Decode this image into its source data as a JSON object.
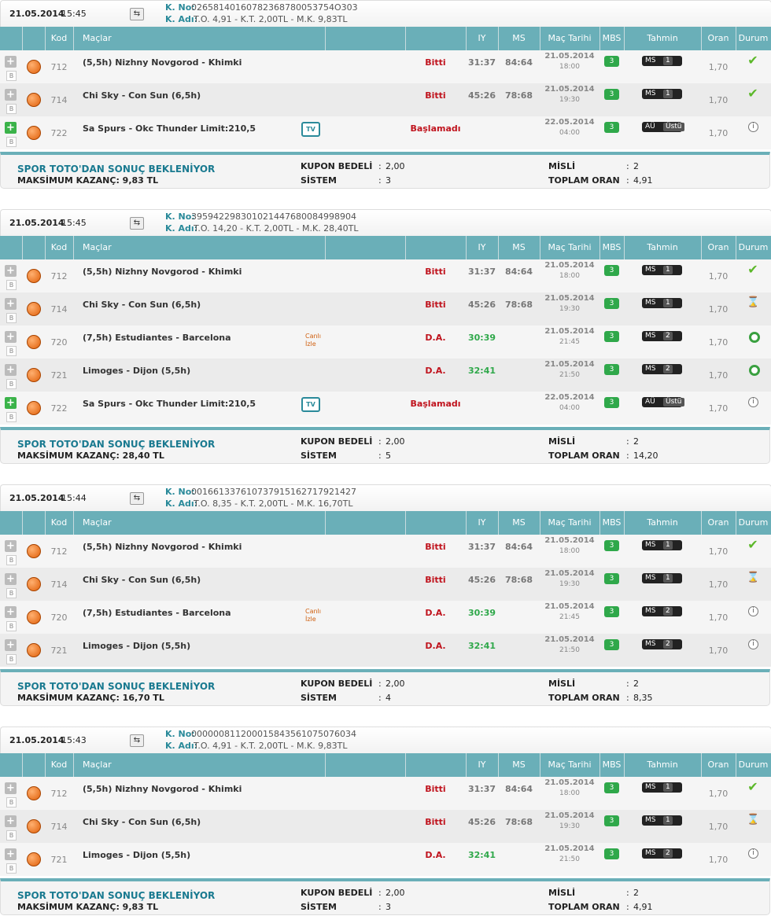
{
  "columns": [
    "Kod",
    "Maçlar",
    "IY",
    "MS",
    "Maç Tarihi",
    "MBS",
    "Tahmin",
    "Oran",
    "Durum"
  ],
  "labels": {
    "k_no": "K. No:",
    "k_adi": "K. Adı:",
    "b": "B",
    "tv": "TV",
    "waiting": "SPOR TOTO'DAN SONUÇ BEKLENİYOR",
    "stake": "KUPON BEDELİ",
    "system": "SİSTEM",
    "multiplier": "MİSLİ",
    "total_odds": "TOPLAM ORAN",
    "sep": ":"
  },
  "coupons": [
    {
      "date": "21.05.2014",
      "time": "15:45",
      "k_no": "02658140160782368780053754O303",
      "k_adi": "T.O. 4,91 - K.T. 2,00TL - M.K. 9,83TL",
      "rows": [
        {
          "code": "712",
          "match": "(5,5h) Nizhny Novgorod - Khimki",
          "status": "Bitti",
          "iy": "31:37",
          "ms": "84:64",
          "date": "21.05.2014",
          "time": "18:00",
          "mbs": "3",
          "bet_type": "MS",
          "bet": "1",
          "odds": "1,70"
        },
        {
          "code": "714",
          "match": "Chi Sky - Con Sun (6,5h)",
          "status": "Bitti",
          "iy": "45:26",
          "ms": "78:68",
          "date": "21.05.2014",
          "time": "19:30",
          "mbs": "3",
          "bet_type": "MS",
          "bet": "1",
          "odds": "1,70"
        },
        {
          "code": "722",
          "match": "Sa Spurs - Okc Thunder Limit:210,5",
          "status": "Başlamadı",
          "date": "22.05.2014",
          "time": "04:00",
          "mbs": "3",
          "bet_type": "AÜ",
          "bet": "Üstü",
          "odds": "1,70"
        }
      ],
      "max_win": "MAKSİMUM KAZANÇ: 9,83 TL",
      "stake": "2,00",
      "system": "3",
      "multiplier": "2",
      "total_odds": "4,91"
    },
    {
      "date": "21.05.2014",
      "time": "15:45",
      "k_no": "395942298301021447680084998904",
      "k_adi": "T.O. 14,20 - K.T. 2,00TL - M.K. 28,40TL",
      "rows": [
        {
          "code": "712",
          "match": "(5,5h) Nizhny Novgorod - Khimki",
          "status": "Bitti",
          "iy": "31:37",
          "ms": "84:64",
          "date": "21.05.2014",
          "time": "18:00",
          "mbs": "3",
          "bet_type": "MS",
          "bet": "1",
          "odds": "1,70"
        },
        {
          "code": "714",
          "match": "Chi Sky - Con Sun (6,5h)",
          "status": "Bitti",
          "iy": "45:26",
          "ms": "78:68",
          "date": "21.05.2014",
          "time": "19:30",
          "mbs": "3",
          "bet_type": "MS",
          "bet": "1",
          "odds": "1,70"
        },
        {
          "code": "720",
          "match": "(7,5h) Estudiantes - Barcelona",
          "live": [
            "Canlı",
            "İzle"
          ],
          "status": "D.A.",
          "iy": "30:39",
          "date": "21.05.2014",
          "time": "21:45",
          "mbs": "3",
          "bet_type": "MS",
          "bet": "2",
          "odds": "1,70"
        },
        {
          "code": "721",
          "match": "Limoges - Dijon (5,5h)",
          "status": "D.A.",
          "iy": "32:41",
          "date": "21.05.2014",
          "time": "21:50",
          "mbs": "3",
          "bet_type": "MS",
          "bet": "2",
          "odds": "1,70"
        },
        {
          "code": "722",
          "match": "Sa Spurs - Okc Thunder Limit:210,5",
          "status": "Başlamadı",
          "date": "22.05.2014",
          "time": "04:00",
          "mbs": "3",
          "bet_type": "AÜ",
          "bet": "Üstü",
          "odds": "1,70"
        }
      ],
      "max_win": "MAKSİMUM KAZANÇ: 28,40 TL",
      "stake": "2,00",
      "system": "5",
      "multiplier": "2",
      "total_odds": "14,20"
    },
    {
      "date": "21.05.2014",
      "time": "15:44",
      "k_no": "001661337610737915162717921427",
      "k_adi": "T.O. 8,35 - K.T. 2,00TL - M.K. 16,70TL",
      "rows": [
        {
          "code": "712",
          "match": "(5,5h) Nizhny Novgorod - Khimki",
          "status": "Bitti",
          "iy": "31:37",
          "ms": "84:64",
          "date": "21.05.2014",
          "time": "18:00",
          "mbs": "3",
          "bet_type": "MS",
          "bet": "1",
          "odds": "1,70"
        },
        {
          "code": "714",
          "match": "Chi Sky - Con Sun (6,5h)",
          "status": "Bitti",
          "iy": "45:26",
          "ms": "78:68",
          "date": "21.05.2014",
          "time": "19:30",
          "mbs": "3",
          "bet_type": "MS",
          "bet": "1",
          "odds": "1,70"
        },
        {
          "code": "720",
          "match": "(7,5h) Estudiantes - Barcelona",
          "live": [
            "Canlı",
            "İzle"
          ],
          "status": "D.A.",
          "iy": "30:39",
          "date": "21.05.2014",
          "time": "21:45",
          "mbs": "3",
          "bet_type": "MS",
          "bet": "2",
          "odds": "1,70"
        },
        {
          "code": "721",
          "match": "Limoges - Dijon (5,5h)",
          "status": "D.A.",
          "iy": "32:41",
          "date": "21.05.2014",
          "time": "21:50",
          "mbs": "3",
          "bet_type": "MS",
          "bet": "2",
          "odds": "1,70"
        }
      ],
      "max_win": "MAKSİMUM KAZANÇ: 16,70 TL",
      "stake": "2,00",
      "system": "4",
      "multiplier": "2",
      "total_odds": "8,35"
    },
    {
      "date": "21.05.2014",
      "time": "15:43",
      "k_no": "000000811200015843561075076034",
      "k_adi": "T.O. 4,91 - K.T. 2,00TL - M.K. 9,83TL",
      "rows": [
        {
          "code": "712",
          "match": "(5,5h) Nizhny Novgorod - Khimki",
          "status": "Bitti",
          "iy": "31:37",
          "ms": "84:64",
          "date": "21.05.2014",
          "time": "18:00",
          "mbs": "3",
          "bet_type": "MS",
          "bet": "1",
          "odds": "1,70"
        },
        {
          "code": "714",
          "match": "Chi Sky - Con Sun (6,5h)",
          "status": "Bitti",
          "iy": "45:26",
          "ms": "78:68",
          "date": "21.05.2014",
          "time": "19:30",
          "mbs": "3",
          "bet_type": "MS",
          "bet": "1",
          "odds": "1,70"
        },
        {
          "code": "721",
          "match": "Limoges - Dijon (5,5h)",
          "status": "D.A.",
          "iy": "32:41",
          "date": "21.05.2014",
          "time": "21:50",
          "mbs": "3",
          "bet_type": "MS",
          "bet": "2",
          "odds": "1,70"
        }
      ],
      "max_win": "MAKSİMUM KAZANÇ: 9,83 TL",
      "stake": "2,00",
      "system": "3",
      "multiplier": "2",
      "total_odds": "4,91"
    }
  ]
}
